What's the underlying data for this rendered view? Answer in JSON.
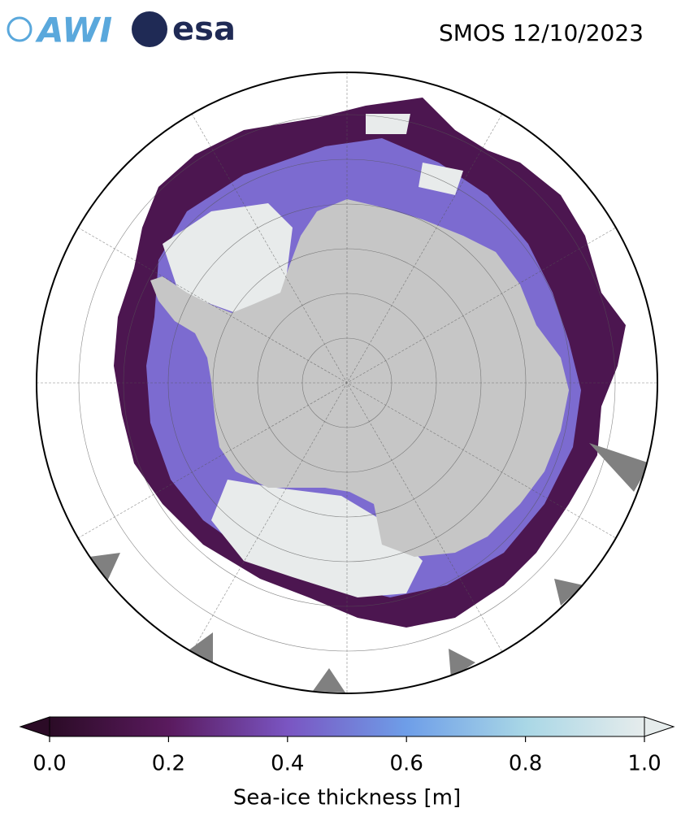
{
  "header": {
    "title": "SMOS 12/10/2023",
    "logos": [
      "AWI",
      "esa"
    ]
  },
  "colorbar": {
    "label": "Sea-ice thickness [m]",
    "lim": [
      0,
      1
    ],
    "extend": "both",
    "colormap": [
      "#2b0b26",
      "#5a1a5e",
      "#7a55c2",
      "#6e9ee8",
      "#a9d7e6",
      "#e6ecec"
    ],
    "ticks": [
      {
        "value": 0,
        "label": "0.0"
      },
      {
        "value": 0.2,
        "label": "0.2"
      },
      {
        "value": 0.4,
        "label": "0.4"
      },
      {
        "value": 0.6,
        "label": "0.6"
      },
      {
        "value": 0.8,
        "label": "0.8"
      },
      {
        "value": 1,
        "label": "1.0"
      }
    ]
  }
}
